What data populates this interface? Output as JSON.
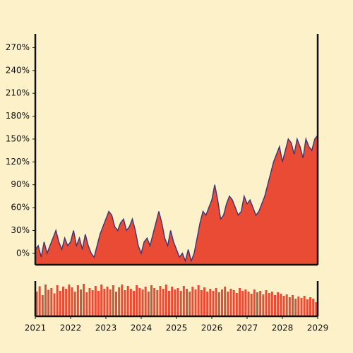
{
  "chart_data": [
    {
      "type": "area",
      "line_color": "#3f3a78",
      "fill_color": "#e94b35",
      "xlim": [
        2021,
        2029
      ],
      "ylim": [
        -15,
        288
      ],
      "yticks": [
        {
          "value": 0,
          "label": "0%"
        },
        {
          "value": 30,
          "label": "30%"
        },
        {
          "value": 60,
          "label": "60%"
        },
        {
          "value": 90,
          "label": "90%"
        },
        {
          "value": 120,
          "label": "120%"
        },
        {
          "value": 150,
          "label": "150%"
        },
        {
          "value": 180,
          "label": "180%"
        },
        {
          "value": 210,
          "label": "210%"
        },
        {
          "value": 240,
          "label": "240%"
        },
        {
          "value": 270,
          "label": "270%"
        }
      ],
      "x": [
        2021,
        2021.0833,
        2021.1667,
        2021.25,
        2021.3333,
        2021.4167,
        2021.5,
        2021.5833,
        2021.6667,
        2021.75,
        2021.8333,
        2021.9167,
        2022,
        2022.0833,
        2022.1667,
        2022.25,
        2022.3333,
        2022.4167,
        2022.5,
        2022.5833,
        2022.6667,
        2022.75,
        2022.8333,
        2022.9167,
        2023,
        2023.0833,
        2023.1667,
        2023.25,
        2023.3333,
        2023.4167,
        2023.5,
        2023.5833,
        2023.6667,
        2023.75,
        2023.8333,
        2023.9167,
        2024,
        2024.0833,
        2024.1667,
        2024.25,
        2024.3333,
        2024.4167,
        2024.5,
        2024.5833,
        2024.6667,
        2024.75,
        2024.8333,
        2024.9167,
        2025,
        2025.0833,
        2025.1667,
        2025.25,
        2025.3333,
        2025.4167,
        2025.5,
        2025.5833,
        2025.6667,
        2025.75,
        2025.8333,
        2025.9167,
        2026,
        2026.0833,
        2026.1667,
        2026.25,
        2026.3333,
        2026.4167,
        2026.5,
        2026.5833,
        2026.6667,
        2026.75,
        2026.8333,
        2026.9167,
        2027,
        2027.0833,
        2027.1667,
        2027.25,
        2027.3333,
        2027.4167,
        2027.5,
        2027.5833,
        2027.6667,
        2027.75,
        2027.8333,
        2027.9167,
        2028,
        2028.0833,
        2028.1667,
        2028.25,
        2028.3333,
        2028.4167,
        2028.5,
        2028.5833,
        2028.6667,
        2028.75,
        2028.8333,
        2028.9167,
        2029
      ],
      "values": [
        5,
        10,
        -5,
        15,
        0,
        10,
        20,
        30,
        15,
        5,
        20,
        10,
        15,
        30,
        10,
        20,
        5,
        25,
        10,
        0,
        -5,
        10,
        25,
        35,
        45,
        55,
        50,
        35,
        30,
        40,
        45,
        30,
        35,
        45,
        30,
        10,
        0,
        15,
        20,
        10,
        25,
        40,
        55,
        40,
        20,
        10,
        30,
        15,
        5,
        -5,
        0,
        -10,
        5,
        -10,
        0,
        20,
        40,
        55,
        50,
        60,
        70,
        90,
        70,
        45,
        50,
        65,
        75,
        70,
        60,
        50,
        55,
        75,
        65,
        70,
        60,
        50,
        55,
        65,
        75,
        90,
        105,
        120,
        130,
        140,
        120,
        135,
        150,
        145,
        130,
        150,
        140,
        125,
        150,
        140,
        135,
        150,
        155
      ]
    },
    {
      "type": "bar",
      "color": "#e94b35",
      "xlim": [
        2021,
        2029
      ],
      "ylim": [
        0,
        100
      ],
      "xticks": [
        2021,
        2022,
        2023,
        2024,
        2025,
        2026,
        2027,
        2028,
        2029
      ],
      "x": [
        2021,
        2021.0833,
        2021.1667,
        2021.25,
        2021.3333,
        2021.4167,
        2021.5,
        2021.5833,
        2021.6667,
        2021.75,
        2021.8333,
        2021.9167,
        2022,
        2022.0833,
        2022.1667,
        2022.25,
        2022.3333,
        2022.4167,
        2022.5,
        2022.5833,
        2022.6667,
        2022.75,
        2022.8333,
        2022.9167,
        2023,
        2023.0833,
        2023.1667,
        2023.25,
        2023.3333,
        2023.4167,
        2023.5,
        2023.5833,
        2023.6667,
        2023.75,
        2023.8333,
        2023.9167,
        2024,
        2024.0833,
        2024.1667,
        2024.25,
        2024.3333,
        2024.4167,
        2024.5,
        2024.5833,
        2024.6667,
        2024.75,
        2024.8333,
        2024.9167,
        2025,
        2025.0833,
        2025.1667,
        2025.25,
        2025.3333,
        2025.4167,
        2025.5,
        2025.5833,
        2025.6667,
        2025.75,
        2025.8333,
        2025.9167,
        2026,
        2026.0833,
        2026.1667,
        2026.25,
        2026.3333,
        2026.4167,
        2026.5,
        2026.5833,
        2026.6667,
        2026.75,
        2026.8333,
        2026.9167,
        2027,
        2027.0833,
        2027.1667,
        2027.25,
        2027.3333,
        2027.4167,
        2027.5,
        2027.5833,
        2027.6667,
        2027.75,
        2027.8333,
        2027.9167,
        2028,
        2028.0833,
        2028.1667,
        2028.25,
        2028.3333,
        2028.4167,
        2028.5,
        2028.5833,
        2028.6667,
        2028.75,
        2028.8333,
        2028.9167
      ],
      "values": [
        70,
        85,
        60,
        90,
        75,
        80,
        65,
        88,
        72,
        84,
        78,
        90,
        82,
        70,
        88,
        76,
        92,
        68,
        80,
        74,
        86,
        72,
        90,
        78,
        84,
        76,
        88,
        70,
        82,
        90,
        74,
        86,
        78,
        72,
        88,
        80,
        76,
        84,
        70,
        88,
        80,
        74,
        86,
        78,
        90,
        72,
        84,
        76,
        80,
        72,
        86,
        78,
        70,
        84,
        76,
        88,
        74,
        82,
        70,
        78,
        72,
        80,
        68,
        76,
        84,
        70,
        78,
        74,
        66,
        80,
        72,
        76,
        70,
        64,
        76,
        68,
        72,
        62,
        74,
        66,
        70,
        60,
        68,
        64,
        58,
        62,
        54,
        60,
        50,
        56,
        52,
        58,
        48,
        54,
        50,
        40
      ]
    }
  ]
}
